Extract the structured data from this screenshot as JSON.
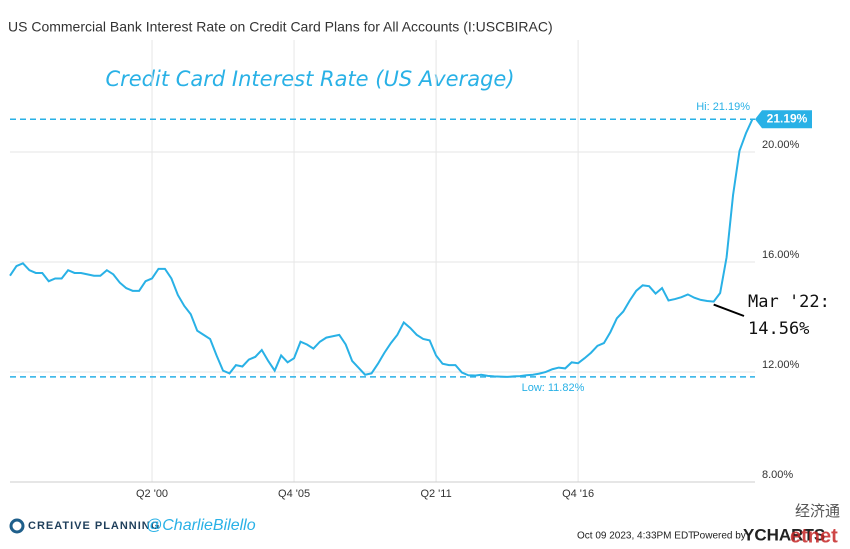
{
  "chart_data": {
    "type": "line",
    "title": "US Commercial Bank Interest Rate on Credit Card Plans for All Accounts (I:USCBIRAC)",
    "subtitle": "Credit Card Interest Rate (US Average)",
    "x": [
      1994.75,
      1995,
      1995.25,
      1995.5,
      1995.75,
      1996,
      1996.25,
      1996.5,
      1996.75,
      1997,
      1997.25,
      1997.5,
      1997.75,
      1998,
      1998.25,
      1998.5,
      1998.75,
      1999,
      1999.25,
      1999.5,
      1999.75,
      2000,
      2000.25,
      2000.5,
      2000.75,
      2001,
      2001.25,
      2001.5,
      2001.75,
      2002,
      2002.25,
      2002.5,
      2002.75,
      2003,
      2003.25,
      2003.5,
      2003.75,
      2004,
      2004.25,
      2004.5,
      2004.75,
      2005,
      2005.25,
      2005.5,
      2005.75,
      2006,
      2006.25,
      2006.5,
      2006.75,
      2007,
      2007.25,
      2007.5,
      2007.75,
      2008,
      2008.25,
      2008.5,
      2008.75,
      2009,
      2009.25,
      2009.5,
      2009.75,
      2010,
      2010.25,
      2010.5,
      2010.75,
      2011,
      2011.25,
      2011.5,
      2011.75,
      2012,
      2012.25,
      2012.5,
      2012.75,
      2013,
      2013.25,
      2013.5,
      2013.75,
      2014,
      2014.25,
      2014.5,
      2014.75,
      2015,
      2015.25,
      2015.5,
      2015.75,
      2016,
      2016.25,
      2016.5,
      2016.75,
      2017,
      2017.25,
      2017.5,
      2017.75,
      2018,
      2018.25,
      2018.5,
      2018.75,
      2019,
      2019.25,
      2019.5,
      2019.75,
      2020,
      2020.25,
      2020.5,
      2020.75,
      2021,
      2021.25,
      2021.5,
      2021.75,
      2022,
      2022.25,
      2022.5,
      2022.75,
      2023,
      2023.25,
      2023.5
    ],
    "values": [
      15.5,
      15.85,
      15.95,
      15.7,
      15.6,
      15.6,
      15.3,
      15.4,
      15.4,
      15.7,
      15.6,
      15.6,
      15.55,
      15.5,
      15.5,
      15.7,
      15.55,
      15.25,
      15.05,
      14.95,
      14.95,
      15.3,
      15.4,
      15.75,
      15.75,
      15.4,
      14.8,
      14.4,
      14.1,
      13.5,
      13.35,
      13.2,
      12.6,
      12.05,
      11.95,
      12.25,
      12.2,
      12.45,
      12.55,
      12.8,
      12.4,
      12.05,
      12.6,
      12.35,
      12.5,
      13.1,
      13,
      12.85,
      13.1,
      13.25,
      13.3,
      13.35,
      13,
      12.4,
      12.15,
      11.9,
      11.95,
      12.3,
      12.7,
      13.05,
      13.35,
      13.8,
      13.6,
      13.35,
      13.2,
      13.15,
      12.6,
      12.3,
      12.25,
      12.25,
      11.98,
      11.88,
      11.87,
      11.9,
      11.86,
      11.84,
      11.83,
      11.82,
      11.84,
      11.85,
      11.88,
      11.9,
      11.94,
      12,
      12.1,
      12.16,
      12.13,
      12.35,
      12.32,
      12.5,
      12.7,
      12.95,
      13.05,
      13.45,
      13.95,
      14.2,
      14.6,
      14.95,
      15.15,
      15.12,
      14.85,
      15.05,
      14.6,
      14.65,
      14.72,
      14.82,
      14.7,
      14.62,
      14.58,
      14.56,
      14.87,
      16.17,
      18.43,
      20.04,
      20.68,
      21.19
    ],
    "color": "#29b1e6",
    "xlim": [
      1994.75,
      2023.6
    ],
    "xticks": [
      {
        "value": 2000.25,
        "label": "Q2 '00"
      },
      {
        "value": 2005.75,
        "label": "Q4 '05"
      },
      {
        "value": 2011.25,
        "label": "Q2 '11"
      },
      {
        "value": 2016.75,
        "label": "Q4 '16"
      }
    ],
    "ylim": [
      8,
      24.07
    ],
    "yticks": [
      {
        "value": 8,
        "label": "8.00%"
      },
      {
        "value": 12,
        "label": "12.00%"
      },
      {
        "value": 16,
        "label": "16.00%"
      },
      {
        "value": 20,
        "label": "20.00%"
      }
    ],
    "grid": true,
    "reference_lines": [
      {
        "label": "Hi: 21.19%",
        "value": 21.19
      },
      {
        "label": "Low: 11.82%",
        "value": 11.82
      }
    ],
    "last_value_label": "21.19%",
    "annotation": {
      "lines": [
        "Mar '22:",
        "14.56%"
      ],
      "x": 2022,
      "value": 14.56
    }
  },
  "footer": {
    "brand": "CREATIVE PLANNING",
    "handle": "@CharlieBilello",
    "timestamp": "Oct 09 2023, 4:33PM EDT.",
    "powered_by": "Powered by",
    "provider": "YCHARTS",
    "watermark": [
      "经济通",
      "etnet"
    ]
  }
}
